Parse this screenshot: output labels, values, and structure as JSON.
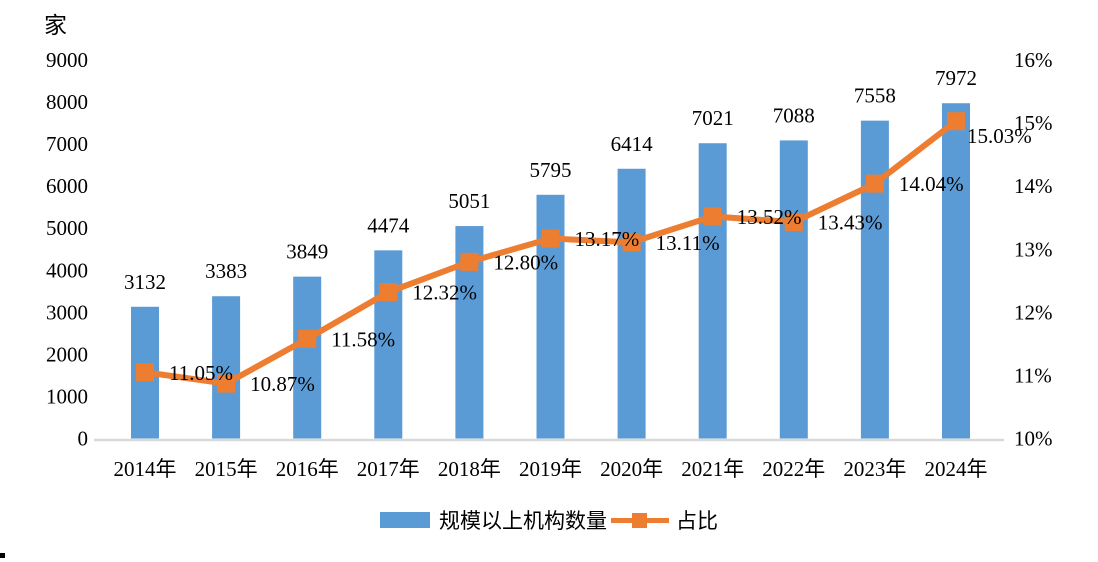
{
  "chart_data": {
    "type": "bar+line",
    "title": "",
    "unit_label": "家",
    "categories": [
      "2014年",
      "2015年",
      "2016年",
      "2017年",
      "2018年",
      "2019年",
      "2020年",
      "2021年",
      "2022年",
      "2023年",
      "2024年"
    ],
    "series": [
      {
        "name": "规模以上机构数量",
        "type": "bar",
        "axis": "left",
        "color": "#5B9BD5",
        "values": [
          3132,
          3383,
          3849,
          4474,
          5051,
          5795,
          6414,
          7021,
          7088,
          7558,
          7972
        ],
        "labels": [
          "3132",
          "3383",
          "3849",
          "4474",
          "5051",
          "5795",
          "6414",
          "7021",
          "7088",
          "7558",
          "7972"
        ]
      },
      {
        "name": "占比",
        "type": "line",
        "axis": "right",
        "color": "#ED7D31",
        "marker": "square",
        "values": [
          11.05,
          10.87,
          11.58,
          12.32,
          12.8,
          13.17,
          13.11,
          13.52,
          13.43,
          14.04,
          15.03
        ],
        "labels": [
          "11.05%",
          "10.87%",
          "11.58%",
          "12.32%",
          "12.80%",
          "13.17%",
          "13.11%",
          "13.52%",
          "13.43%",
          "14.04%",
          "15.03%"
        ]
      }
    ],
    "left_axis": {
      "unit": "家",
      "min": 0,
      "max": 9000,
      "step": 1000,
      "ticks": [
        "0",
        "1000",
        "2000",
        "3000",
        "4000",
        "5000",
        "6000",
        "7000",
        "8000",
        "9000"
      ]
    },
    "right_axis": {
      "min": 10,
      "max": 16,
      "step": 1,
      "ticks": [
        "10%",
        "11%",
        "12%",
        "13%",
        "14%",
        "15%",
        "16%"
      ]
    },
    "grid": false,
    "legend_position": "bottom",
    "axis_line_color": "#D9D9D9",
    "text_color": "#000000",
    "background_color": "#FFFFFF"
  }
}
